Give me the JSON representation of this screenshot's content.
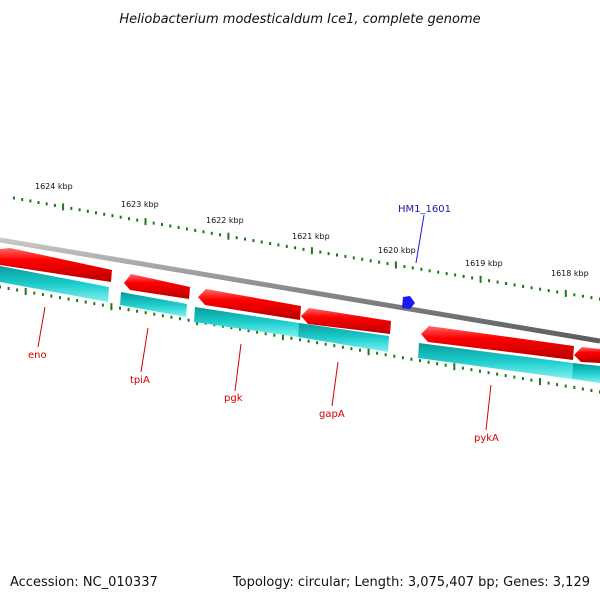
{
  "title": "Heliobacterium modesticaldum Ice1, complete genome",
  "footer": {
    "accession": "Accession: NC_010337",
    "topology": "Topology: circular; Length: 3,075,407 bp; Genes: 3,129"
  },
  "scale_labels": [
    "1624 kbp",
    "1623 kbp",
    "1622 kbp",
    "1621 kbp",
    "1620 kbp",
    "1619 kbp",
    "1618 kbp"
  ],
  "gene_labels": [
    "eno",
    "tpiA",
    "pgk",
    "gapA",
    "pykA"
  ],
  "feature_label": "HM1_1601",
  "colors": {
    "gene_red": "#ff0000",
    "cds_cyan": "#00d8d8",
    "backbone": "#8a8888",
    "tick_green": "#1a7a1a",
    "label_red": "#d40000",
    "feature_blue": "#1a1af0"
  }
}
